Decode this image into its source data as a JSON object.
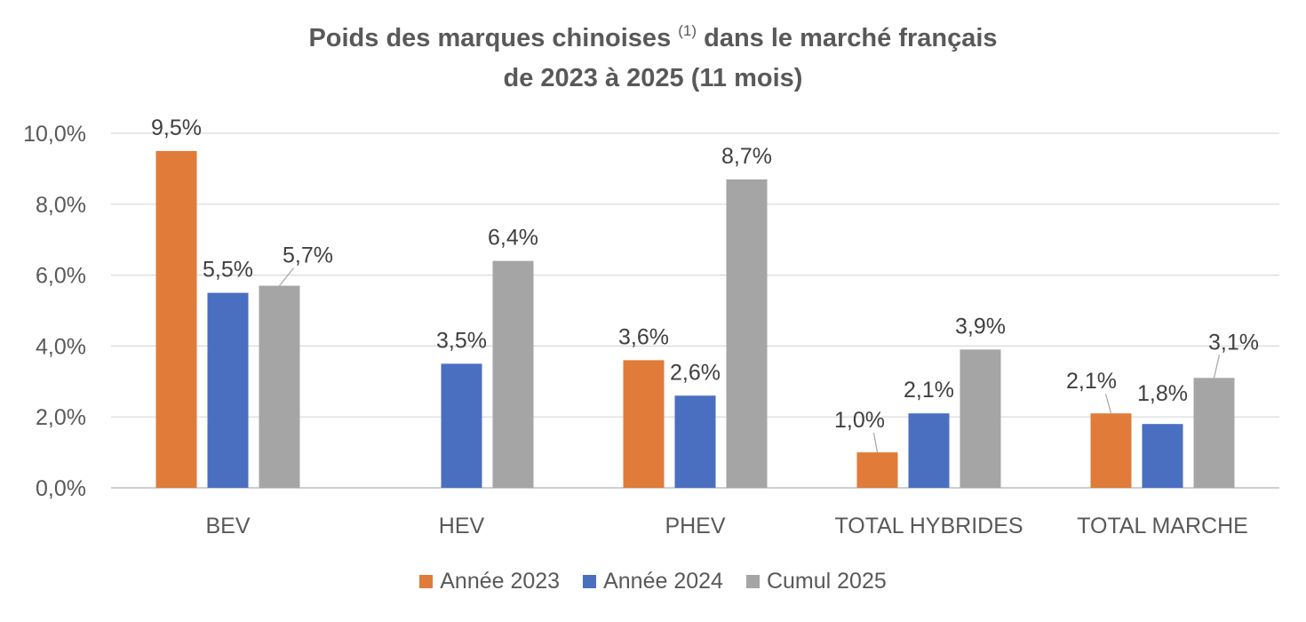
{
  "chart_data": {
    "type": "bar",
    "title_line_1_a": "Poids des marques chinoises",
    "title_footnote": "(1)",
    "title_line_1_b": "dans le marché français",
    "title_line_2": "de 2023 à 2025 (11 mois)",
    "categories": [
      "BEV",
      "HEV",
      "PHEV",
      "TOTAL HYBRIDES",
      "TOTAL MARCHE"
    ],
    "ylim": [
      0,
      10
    ],
    "yticks": [
      0,
      2,
      4,
      6,
      8,
      10
    ],
    "ytick_labels": [
      "0,0%",
      "2,0%",
      "4,0%",
      "6,0%",
      "8,0%",
      "10,0%"
    ],
    "grid": true,
    "legend_position": "bottom",
    "series": [
      {
        "name": "Année 2023",
        "color": "#E07B39",
        "values": [
          9.5,
          null,
          3.6,
          1.0,
          2.1
        ],
        "labels": [
          "9,5%",
          "",
          "3,6%",
          "1,0%",
          "2,1%"
        ]
      },
      {
        "name": "Année 2024",
        "color": "#4A6FC1",
        "values": [
          5.5,
          3.5,
          2.6,
          2.1,
          1.8
        ],
        "labels": [
          "5,5%",
          "3,5%",
          "2,6%",
          "2,1%",
          "1,8%"
        ]
      },
      {
        "name": "Cumul 2025",
        "color": "#A5A5A5",
        "values": [
          5.7,
          6.4,
          8.7,
          3.9,
          3.1
        ],
        "labels": [
          "5,7%",
          "6,4%",
          "8,7%",
          "3,9%",
          "3,1%"
        ]
      }
    ]
  }
}
